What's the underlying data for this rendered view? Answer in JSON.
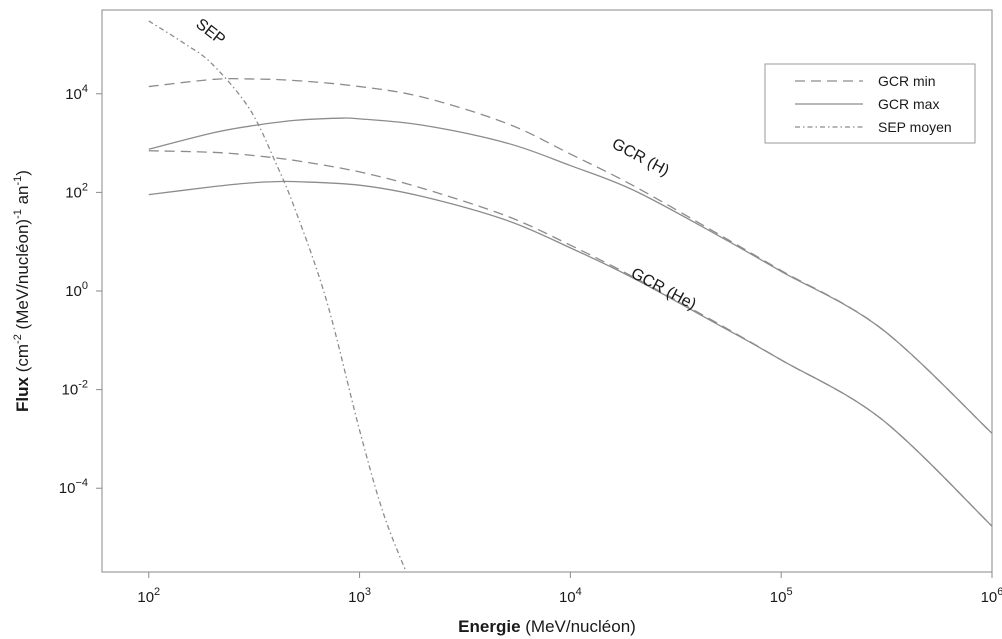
{
  "chart_data": {
    "type": "line",
    "xlabel": {
      "bold": "Energie",
      "rest": " (MeV/nucléon)"
    },
    "ylabel": {
      "bold": "Flux",
      "rest_a": " (cm",
      "sup1": "-2",
      "rest_b": " (MeV/nucléon)",
      "sup2": "-1",
      "rest_c": " an",
      "sup3": "-1",
      "rest_d": ")"
    },
    "x_scale": "log",
    "y_scale": "log",
    "xlim": [
      60,
      1000000
    ],
    "ylim": [
      2e-06,
      500000
    ],
    "x_ticks": [
      {
        "value": 100,
        "base": "10",
        "exp": "2"
      },
      {
        "value": 1000,
        "base": "10",
        "exp": "3"
      },
      {
        "value": 10000,
        "base": "10",
        "exp": "4"
      },
      {
        "value": 100000,
        "base": "10",
        "exp": "5"
      },
      {
        "value": 1000000,
        "base": "10",
        "exp": "6"
      }
    ],
    "y_ticks": [
      {
        "value": 10000,
        "base": "10",
        "exp": "4"
      },
      {
        "value": 100,
        "base": "10",
        "exp": "2"
      },
      {
        "value": 1,
        "base": "10",
        "exp": "0"
      },
      {
        "value": 0.01,
        "base": "10",
        "exp": "-2"
      },
      {
        "value": 0.0001,
        "base": "10",
        "exp": "−4"
      }
    ],
    "grid": false,
    "legend_position": "top-right",
    "legend": [
      {
        "label": "GCR min",
        "style": "long-dash"
      },
      {
        "label": "GCR max",
        "style": "solid"
      },
      {
        "label": "SEP moyen",
        "style": "dash-dot"
      }
    ],
    "series": [
      {
        "group": "GCR (H)",
        "style": "long-dash",
        "x": [
          100,
          200,
          300,
          500,
          1000,
          2000,
          5000,
          10000,
          20000,
          50000,
          100000,
          300000,
          1000000
        ],
        "y": [
          14000,
          19500,
          20000,
          18500,
          14000,
          8500,
          2500,
          600,
          135,
          14.5,
          2.6,
          0.17,
          0.0013
        ]
      },
      {
        "group": "GCR (H)",
        "style": "solid",
        "x": [
          100,
          200,
          300,
          500,
          800,
          1000,
          2000,
          5000,
          10000,
          20000,
          50000,
          100000,
          300000,
          1000000
        ],
        "y": [
          750,
          1600,
          2200,
          2900,
          3200,
          3100,
          2300,
          1000,
          350,
          110,
          13.5,
          2.5,
          0.17,
          0.0013
        ]
      },
      {
        "group": "GCR (He)",
        "style": "long-dash",
        "x": [
          100,
          200,
          300,
          500,
          1000,
          2000,
          5000,
          10000,
          20000,
          50000,
          100000,
          300000,
          1000000
        ],
        "y": [
          700,
          650,
          570,
          440,
          260,
          120,
          33,
          8.5,
          1.9,
          0.22,
          0.04,
          0.0025,
          1.7e-05
        ]
      },
      {
        "group": "GCR (He)",
        "style": "solid",
        "x": [
          100,
          200,
          300,
          400,
          500,
          1000,
          2000,
          5000,
          10000,
          20000,
          50000,
          100000,
          300000,
          1000000
        ],
        "y": [
          90,
          130,
          155,
          165,
          165,
          140,
          82,
          27,
          7.5,
          1.8,
          0.21,
          0.04,
          0.0025,
          1.7e-05
        ]
      },
      {
        "group": "SEP",
        "style": "dash-dot",
        "x": [
          100,
          150,
          200,
          300,
          400,
          500,
          700,
          1000,
          1300,
          1700
        ],
        "y": [
          300000,
          100000,
          40000,
          5000,
          400,
          40,
          0.6,
          0.0015,
          3e-05,
          1.6e-06
        ]
      }
    ],
    "annotations": [
      {
        "text": "SEP",
        "x": 190,
        "y": 150000,
        "rotate": 38
      },
      {
        "text": "GCR (H)",
        "x": 21000,
        "y": 420,
        "rotate": 28
      },
      {
        "text": "GCR (He)",
        "x": 27000,
        "y": 0.9,
        "rotate": 28
      }
    ]
  }
}
